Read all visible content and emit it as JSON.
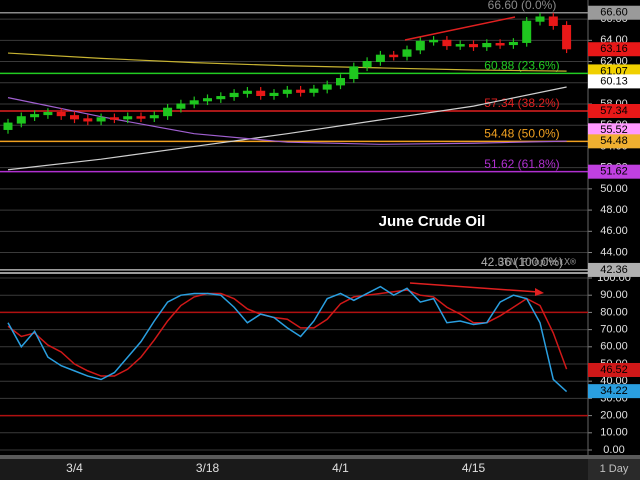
{
  "chart_data": [
    {
      "type": "candlestick",
      "title": "June Crude Oil",
      "watermark": "DTN ProphetX®",
      "open": [
        55.6,
        56.2,
        56.8,
        57.0,
        57.2,
        56.9,
        56.6,
        56.4,
        56.7,
        56.6,
        56.8,
        56.7,
        56.9,
        57.6,
        58.0,
        58.3,
        58.5,
        58.7,
        59.0,
        59.2,
        58.8,
        59.0,
        59.3,
        59.1,
        59.4,
        59.8,
        60.4,
        61.5,
        62.0,
        62.6,
        62.5,
        63.1,
        63.9,
        64.0,
        63.5,
        63.6,
        63.4,
        63.7,
        63.6,
        63.8,
        65.8,
        66.2,
        65.4
      ],
      "high": [
        56.6,
        57.2,
        57.4,
        57.6,
        57.6,
        57.3,
        57.0,
        57.1,
        57.1,
        57.2,
        57.2,
        57.3,
        58.0,
        58.4,
        58.7,
        58.9,
        59.1,
        59.4,
        59.6,
        59.6,
        59.4,
        59.7,
        59.7,
        59.8,
        60.2,
        60.8,
        61.9,
        62.4,
        63.0,
        63.0,
        63.5,
        64.3,
        64.4,
        64.4,
        64.0,
        64.0,
        64.1,
        64.1,
        64.2,
        66.2,
        66.6,
        66.6,
        65.8
      ],
      "low": [
        55.2,
        55.8,
        56.4,
        56.6,
        56.5,
        56.2,
        56.0,
        56.0,
        56.2,
        56.2,
        56.3,
        56.3,
        56.5,
        57.2,
        57.6,
        57.9,
        58.1,
        58.3,
        58.6,
        58.4,
        58.4,
        58.6,
        58.7,
        58.7,
        59.0,
        59.4,
        60.0,
        61.1,
        61.6,
        62.1,
        62.1,
        62.7,
        63.5,
        63.1,
        63.1,
        63.0,
        63.0,
        63.2,
        63.2,
        63.4,
        65.4,
        65.0,
        62.8
      ],
      "close": [
        56.2,
        56.8,
        57.0,
        57.2,
        56.9,
        56.6,
        56.4,
        56.7,
        56.6,
        56.8,
        56.7,
        56.9,
        57.6,
        58.0,
        58.3,
        58.5,
        58.7,
        59.0,
        59.2,
        58.8,
        59.0,
        59.3,
        59.1,
        59.4,
        59.8,
        60.4,
        61.5,
        62.0,
        62.6,
        62.5,
        63.1,
        63.9,
        64.0,
        63.5,
        63.6,
        63.4,
        63.7,
        63.6,
        63.8,
        65.8,
        66.2,
        65.4,
        63.2
      ],
      "up_color": "#1fc61f",
      "down_color": "#e81818",
      "overlays": [
        {
          "color": "#c8b432",
          "x": [
            0,
            7,
            14,
            21,
            28,
            35,
            42
          ],
          "values": [
            62.8,
            62.3,
            61.9,
            61.6,
            61.4,
            61.2,
            61.1
          ]
        },
        {
          "color": "#d0d0d0",
          "x": [
            0,
            7,
            14,
            21,
            28,
            35,
            42
          ],
          "values": [
            51.8,
            52.8,
            54.0,
            55.2,
            56.5,
            57.8,
            59.6
          ]
        },
        {
          "color": "#a060d0",
          "x": [
            0,
            7,
            14,
            21,
            28,
            35,
            42
          ],
          "values": [
            58.6,
            56.8,
            55.2,
            54.4,
            54.2,
            54.3,
            54.5
          ]
        }
      ],
      "levels": [
        {
          "value": 66.6,
          "label": "66.60 (0.0%)",
          "color": "#8a8a8a"
        },
        {
          "value": 60.88,
          "label": "60.88 (23.6%)",
          "color": "#22cc22"
        },
        {
          "value": 57.34,
          "label": "57.34 (38.2%)",
          "color": "#e02020"
        },
        {
          "value": 54.48,
          "label": "54.48 (50.0%)",
          "color": "#f0a020"
        },
        {
          "value": 51.62,
          "label": "51.62 (61.8%)",
          "color": "#b030d0"
        },
        {
          "value": 42.36,
          "label": "42.36 (100.0%)",
          "color": "#b0b0b0"
        }
      ],
      "price_tags": [
        {
          "value": 66.6,
          "label": "66.60",
          "color": "#9a9a9a"
        },
        {
          "value": 63.16,
          "label": "63.16",
          "color": "#e81818"
        },
        {
          "value": 61.07,
          "label": "61.07",
          "color": "#f0d000"
        },
        {
          "value": 60.13,
          "label": "60.13",
          "color": "#ffffff"
        },
        {
          "value": 57.34,
          "label": "57.34",
          "color": "#e81818"
        },
        {
          "value": 55.52,
          "label": "55.52",
          "color": "#ff99ff"
        },
        {
          "value": 54.48,
          "label": "54.48",
          "color": "#f0b030"
        },
        {
          "value": 51.62,
          "label": "51.62",
          "color": "#c040e0"
        },
        {
          "value": 42.36,
          "label": "42.36",
          "color": "#b0b0b0"
        }
      ],
      "ylim": [
        41.6,
        67.8
      ],
      "yticks": [
        {
          "value": 44,
          "label": "44.00"
        },
        {
          "value": 46,
          "label": "46.00"
        },
        {
          "value": 48,
          "label": "48.00"
        },
        {
          "value": 50,
          "label": "50.00"
        },
        {
          "value": 52,
          "label": "52.00"
        },
        {
          "value": 54,
          "label": "54.00"
        },
        {
          "value": 56,
          "label": "56.00"
        },
        {
          "value": 58,
          "label": "58.00"
        },
        {
          "value": 60,
          "label": "60.00"
        },
        {
          "value": 62,
          "label": "62.00"
        },
        {
          "value": 64,
          "label": "64.00"
        },
        {
          "value": 66,
          "label": "66.00"
        }
      ],
      "grid": true
    },
    {
      "type": "line",
      "categories": [
        null,
        null,
        null,
        null,
        null,
        "3/4",
        null,
        null,
        null,
        null,
        null,
        null,
        null,
        null,
        null,
        "3/18",
        null,
        null,
        null,
        null,
        null,
        null,
        null,
        null,
        null,
        "4/1",
        null,
        null,
        null,
        null,
        null,
        null,
        null,
        null,
        null,
        "4/15",
        null,
        null,
        null,
        null,
        null,
        null,
        null
      ],
      "interval": "1 Day",
      "series": [
        {
          "color": "#2a9fe0",
          "values": [
            74,
            60,
            69,
            54,
            49,
            46,
            43,
            41,
            45,
            54,
            63,
            75,
            86,
            90,
            91,
            91,
            90,
            83,
            74,
            79,
            77,
            71,
            66,
            75,
            88,
            91,
            87,
            91,
            95,
            90,
            94,
            86,
            88,
            74,
            75,
            73,
            74,
            86,
            90,
            88,
            74,
            41,
            34
          ]
        },
        {
          "color": "#d01818",
          "values": [
            72,
            66,
            68,
            61,
            57,
            50,
            46,
            43,
            43,
            47,
            54,
            64,
            75,
            84,
            89,
            91,
            91,
            88,
            82,
            79,
            77,
            76,
            71,
            71,
            76,
            85,
            89,
            90,
            91,
            92,
            93,
            90,
            89,
            83,
            79,
            74,
            74,
            78,
            83,
            88,
            84,
            68,
            47
          ]
        }
      ],
      "ref_lines": [
        {
          "value": 80,
          "color": "#b01010"
        },
        {
          "value": 20,
          "color": "#b01010"
        }
      ],
      "price_tags": [
        {
          "value": 46.52,
          "label": "46.52",
          "color": "#d01818"
        },
        {
          "value": 34.22,
          "label": "34.22",
          "color": "#2a9fe0"
        }
      ],
      "ylim": [
        -2.9,
        102.9
      ],
      "yticks": [
        {
          "value": 0,
          "label": "0.00"
        },
        {
          "value": 10,
          "label": "10.00"
        },
        {
          "value": 20,
          "label": "20.00"
        },
        {
          "value": 30,
          "label": "30.00"
        },
        {
          "value": 40,
          "label": "40.00"
        },
        {
          "value": 50,
          "label": "50.00"
        },
        {
          "value": 60,
          "label": "60.00"
        },
        {
          "value": 70,
          "label": "70.00"
        },
        {
          "value": 80,
          "label": "80.00"
        },
        {
          "value": 90,
          "label": "90.00"
        },
        {
          "value": 100,
          "label": "100.00"
        }
      ],
      "grid": true
    }
  ]
}
